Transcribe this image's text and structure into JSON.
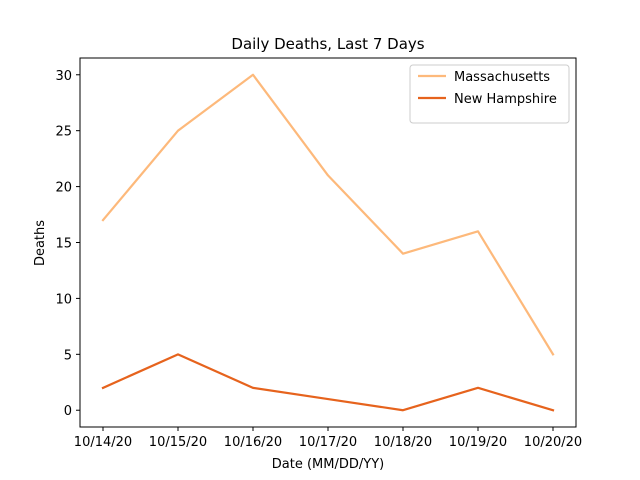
{
  "chart_data": {
    "type": "line",
    "title": "Daily Deaths, Last 7 Days",
    "xlabel": "Date (MM/DD/YY)",
    "ylabel": "Deaths",
    "categories": [
      "10/14/20",
      "10/15/20",
      "10/16/20",
      "10/17/20",
      "10/18/20",
      "10/19/20",
      "10/20/20"
    ],
    "yticks": [
      0,
      5,
      10,
      15,
      20,
      25,
      30
    ],
    "ylim": [
      -1.5,
      31.5
    ],
    "grid": false,
    "legend_position": "top-right",
    "series": [
      {
        "name": "Massachusetts",
        "color": "#fdb97b",
        "values": [
          17,
          25,
          30,
          21,
          14,
          16,
          5
        ]
      },
      {
        "name": "New Hampshire",
        "color": "#e6631d",
        "values": [
          2,
          5,
          2,
          1,
          0,
          2,
          0
        ]
      }
    ]
  }
}
